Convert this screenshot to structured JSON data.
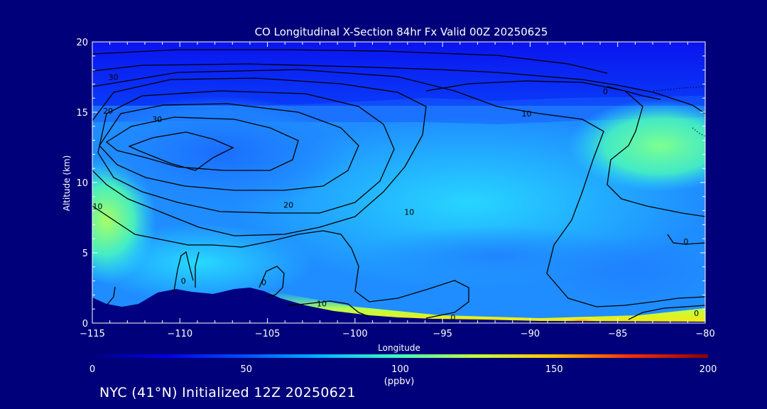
{
  "chart_data": {
    "type": "heatmap",
    "title": "CO Longitudinal X-Section 84hr  Fx Valid 00Z 20250625",
    "xlabel": "Longitude",
    "ylabel": "Altitude (km)",
    "xlim": [
      -115,
      -80
    ],
    "ylim": [
      0,
      20
    ],
    "x_ticks": [
      -115,
      -110,
      -105,
      -100,
      -95,
      -90,
      -85,
      -80
    ],
    "x_tick_labels": [
      "−115",
      "−110",
      "−105",
      "−100",
      "−95",
      "−90",
      "−85",
      "−80"
    ],
    "y_ticks": [
      0,
      5,
      10,
      15,
      20
    ],
    "y_tick_labels": [
      "0",
      "5",
      "10",
      "15",
      "20"
    ],
    "grid": false,
    "colorbar": {
      "min": 0,
      "max": 200,
      "ticks": [
        0,
        50,
        100,
        150,
        200
      ],
      "tick_labels": [
        "0",
        "50",
        "100",
        "150",
        "200"
      ],
      "unit_label": "(ppbv)",
      "colors": [
        "#000080",
        "#0000e6",
        "#0050ff",
        "#00b4ff",
        "#40ffc0",
        "#c0ff40",
        "#ffc000",
        "#ff3000",
        "#8b0000"
      ]
    },
    "field_description_series": [
      {
        "name": "upper_blue_band_alt_km",
        "values": [
          17,
          20
        ]
      },
      {
        "name": "mid_cyan_region_alt_km",
        "values": [
          2,
          15
        ]
      }
    ],
    "contour_levels": [
      0,
      10,
      20,
      30
    ],
    "contour_labels": [
      {
        "text": "30",
        "lon": -113.8,
        "alt": 17.5
      },
      {
        "text": "20",
        "lon": -114.1,
        "alt": 15.1
      },
      {
        "text": "30",
        "lon": -111.3,
        "alt": 14.5
      },
      {
        "text": "10",
        "lon": -90.2,
        "alt": 14.9
      },
      {
        "text": "0",
        "lon": -85.7,
        "alt": 16.5
      },
      {
        "text": "20",
        "lon": -103.8,
        "alt": 8.4
      },
      {
        "text": "10",
        "lon": -96.9,
        "alt": 7.9
      },
      {
        "text": "10",
        "lon": -114.7,
        "alt": 8.3
      },
      {
        "text": "0",
        "lon": -109.8,
        "alt": 3.0
      },
      {
        "text": "0",
        "lon": -105.2,
        "alt": 2.9
      },
      {
        "text": "10",
        "lon": -101.9,
        "alt": 1.4
      },
      {
        "text": "0",
        "lon": -94.4,
        "alt": 0.4
      },
      {
        "text": "0",
        "lon": -81.1,
        "alt": 5.8
      },
      {
        "text": "0",
        "lon": -80.5,
        "alt": 0.7
      }
    ]
  },
  "footer_text": "NYC (41°N) Initialized 12Z 20250621",
  "colors": {
    "background": "#00007a",
    "contour": "#000000",
    "terrain": "#000080"
  }
}
